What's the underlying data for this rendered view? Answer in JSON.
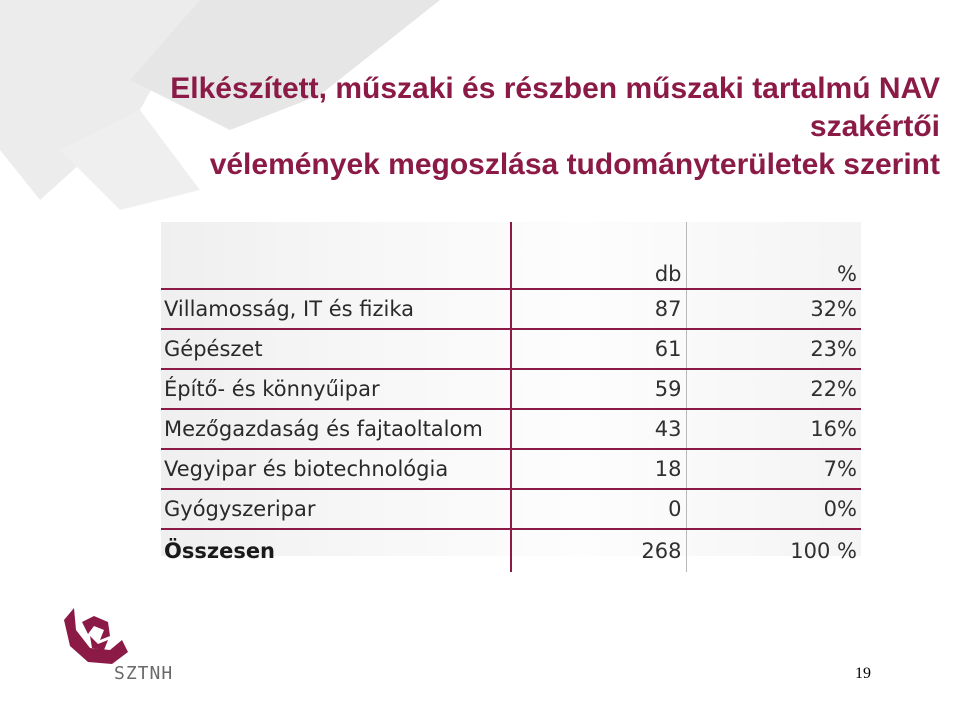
{
  "title": {
    "line1": "Elkészített, műszaki és részben műszaki tartalmú NAV szakértői",
    "line2": "vélemények megoszlása tudományterületek szerint"
  },
  "table": {
    "headers": [
      "",
      "db",
      "%"
    ],
    "rows": [
      {
        "label": "Villamosság, IT és fizika",
        "db": "87",
        "pct": "32%"
      },
      {
        "label": "Gépészet",
        "db": "61",
        "pct": "23%"
      },
      {
        "label": "Építő- és könnyűipar",
        "db": "59",
        "pct": "22%"
      },
      {
        "label": "Mezőgazdaság és fajtaoltalom",
        "db": "43",
        "pct": "16%"
      },
      {
        "label": "Vegyipar és biotechnológia",
        "db": "18",
        "pct": "7%"
      },
      {
        "label": "Gyógyszeripar",
        "db": "0",
        "pct": "0%"
      }
    ],
    "total": {
      "label": "Összesen",
      "db": "268",
      "pct": "100 %"
    }
  },
  "logo": {
    "text": "SZTNH",
    "icon": "sztnh-logo-icon"
  },
  "page_number": "19",
  "colors": {
    "accent": "#8b1b46",
    "decoration": "#e8e8e8"
  }
}
